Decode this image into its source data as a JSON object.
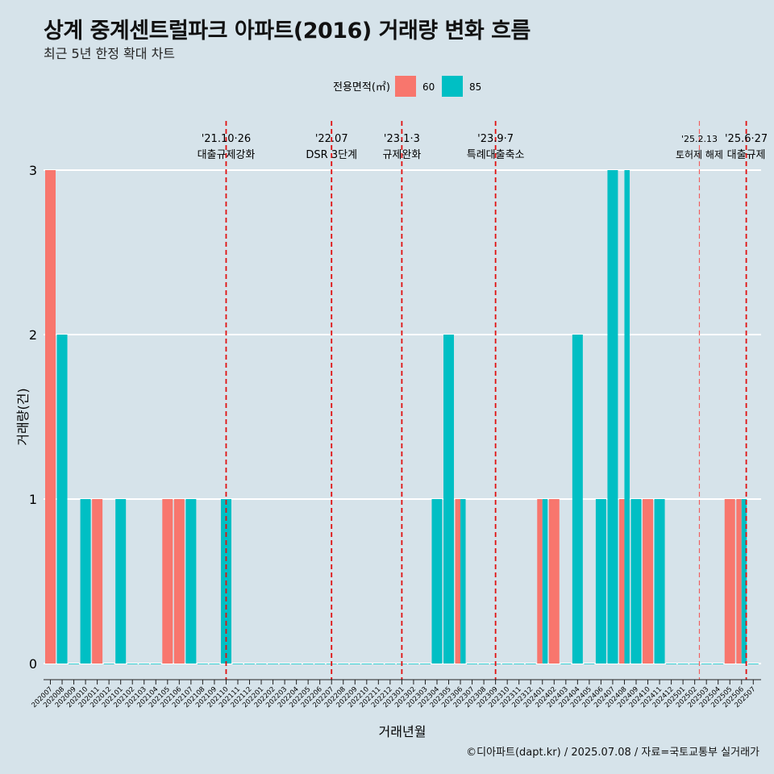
{
  "header": {
    "title": "상계 중계센트럴파크 아파트(2016) 거래량 변화 흐름",
    "subtitle": "최근 5년 한정 확대 차트"
  },
  "caption": "©디아파트(dapt.kr) / 2025.07.08 / 자료=국토교통부 실거래가",
  "chart_data": {
    "type": "bar",
    "xlabel": "거래년월",
    "ylabel": "거래량(건)",
    "ylim": [
      0,
      3
    ],
    "yticks": [
      0,
      1,
      2,
      3
    ],
    "grid": true,
    "legend": {
      "title": "전용면적(㎡)",
      "placement": "top",
      "entries": [
        {
          "name": "60",
          "color": "#f8766d"
        },
        {
          "name": "85",
          "color": "#00bfc4"
        }
      ]
    },
    "categories": [
      "202007",
      "202008",
      "202009",
      "202010",
      "202011",
      "202012",
      "202101",
      "202102",
      "202103",
      "202104",
      "202105",
      "202106",
      "202107",
      "202108",
      "202109",
      "202110",
      "202111",
      "202112",
      "202201",
      "202202",
      "202203",
      "202204",
      "202205",
      "202206",
      "202207",
      "202208",
      "202209",
      "202210",
      "202211",
      "202212",
      "202301",
      "202302",
      "202303",
      "202304",
      "202305",
      "202306",
      "202307",
      "202308",
      "202309",
      "202310",
      "202311",
      "202312",
      "202401",
      "202402",
      "202403",
      "202404",
      "202405",
      "202406",
      "202407",
      "202408",
      "202409",
      "202410",
      "202411",
      "202412",
      "202501",
      "202502",
      "202503",
      "202504",
      "202505",
      "202506",
      "202507"
    ],
    "series": [
      {
        "name": "60",
        "color": "#f8766d",
        "values": [
          3,
          0,
          0,
          0,
          1,
          0,
          0,
          0,
          0,
          0,
          1,
          1,
          0,
          0,
          0,
          0,
          0,
          0,
          0,
          0,
          0,
          0,
          0,
          0,
          0,
          0,
          0,
          0,
          0,
          0,
          0,
          0,
          0,
          0,
          0,
          1,
          0,
          0,
          0,
          0,
          0,
          0,
          1,
          1,
          0,
          0,
          0,
          0,
          0,
          1,
          0,
          1,
          0,
          0,
          0,
          0,
          0,
          0,
          1,
          1,
          0
        ]
      },
      {
        "name": "85",
        "color": "#00bfc4",
        "values": [
          0,
          2,
          0,
          1,
          0,
          0,
          1,
          0,
          0,
          0,
          0,
          0,
          1,
          0,
          0,
          1,
          0,
          0,
          0,
          0,
          0,
          0,
          0,
          0,
          0,
          0,
          0,
          0,
          0,
          0,
          0,
          0,
          0,
          1,
          2,
          1,
          0,
          0,
          0,
          0,
          0,
          0,
          1,
          0,
          0,
          2,
          0,
          1,
          3,
          3,
          1,
          0,
          1,
          0,
          0,
          0,
          0,
          0,
          0,
          1,
          0
        ]
      }
    ],
    "annotations": [
      {
        "date": "'21.10·26",
        "label": "대출규제강화",
        "x_index": 15.0,
        "style": "bold"
      },
      {
        "date": "'22.07",
        "label": "DSR 3단계",
        "x_index": 24.0,
        "style": "bold"
      },
      {
        "date": "'23.1·3",
        "label": "규제완화",
        "x_index": 30.0,
        "style": "bold"
      },
      {
        "date": "'23.9·7",
        "label": "특례대출축소",
        "x_index": 38.0,
        "style": "bold"
      },
      {
        "date": "'25.2.13",
        "label": "토허제 해제",
        "x_index": 55.4,
        "style": "light"
      },
      {
        "date": "'25.6·27",
        "label": "대출규제",
        "x_index": 59.4,
        "style": "bold"
      }
    ]
  }
}
